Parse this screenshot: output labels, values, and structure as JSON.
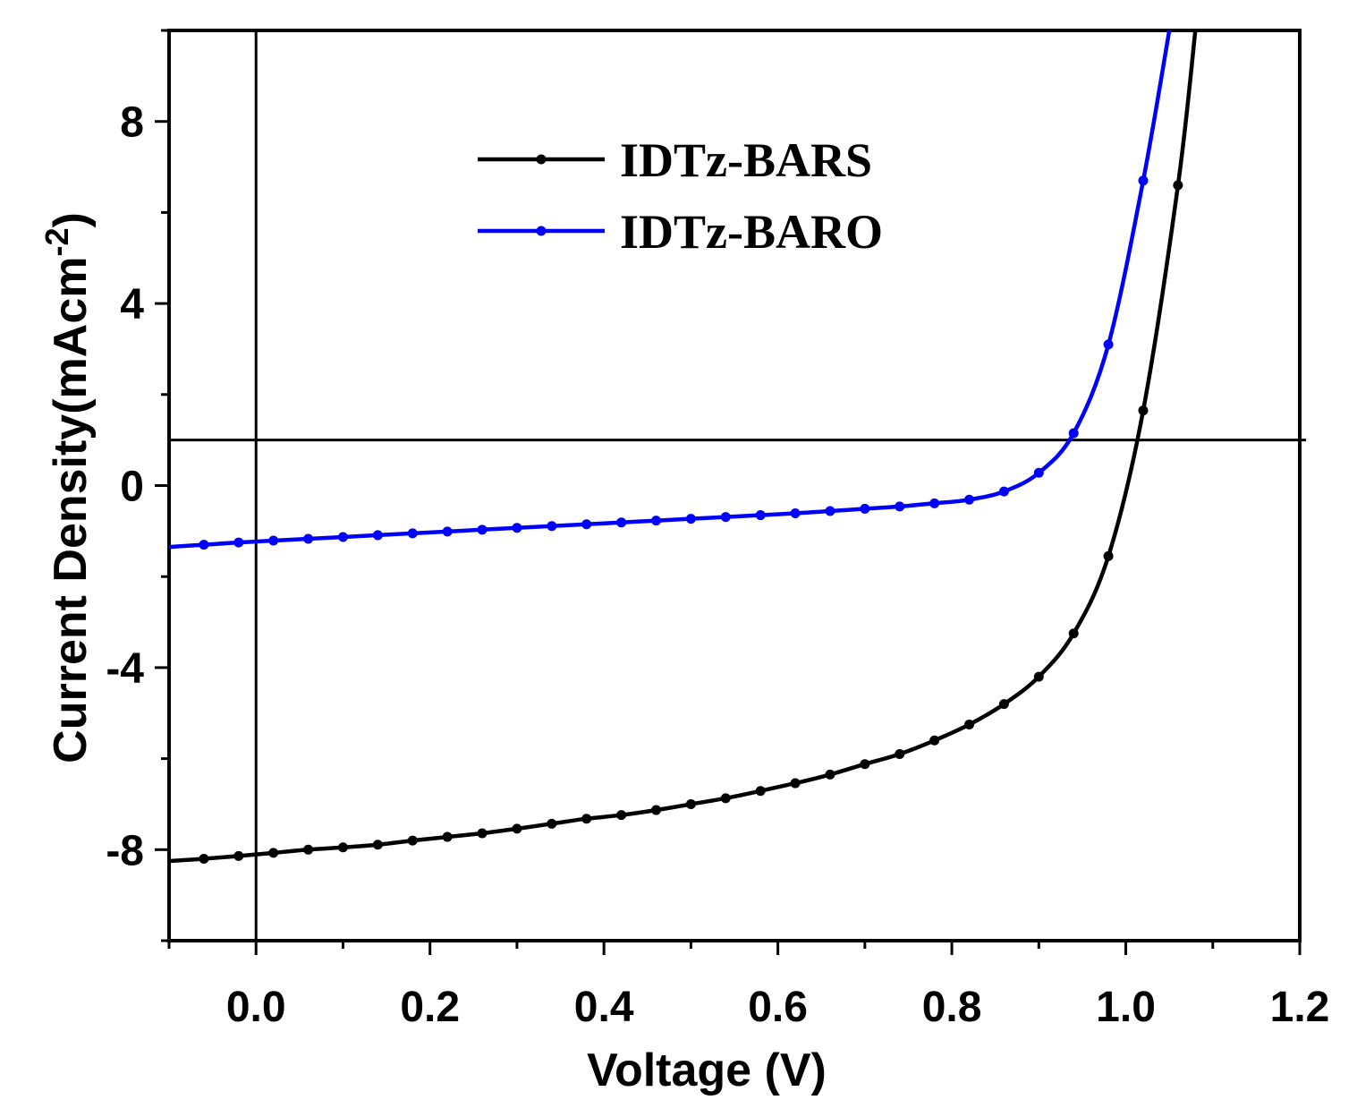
{
  "chart_data": {
    "type": "line",
    "title": "",
    "xlabel": "Voltage (V)",
    "ylabel": "Current Density(mAcm",
    "ylabel_superscript": "-2",
    "ylabel_close": ")",
    "xlim": [
      -0.1,
      1.2
    ],
    "ylim": [
      -10,
      10
    ],
    "xticks": [
      0.0,
      0.2,
      0.4,
      0.6,
      0.8,
      1.0,
      1.2
    ],
    "xtick_labels": [
      "0.0",
      "0.2",
      "0.4",
      "0.6",
      "0.8",
      "1.0",
      "1.2"
    ],
    "yticks": [
      -8,
      -4,
      0,
      4,
      8
    ],
    "ytick_labels": [
      "-8",
      "-4",
      "0",
      "4",
      "8"
    ],
    "reference_lines": {
      "x": 0.0,
      "y": 1.0
    },
    "legend_position": "top-center",
    "series": [
      {
        "name": "IDTz-BARS",
        "color": "#000000",
        "x": [
          -0.1,
          -0.06,
          -0.02,
          0.02,
          0.06,
          0.1,
          0.14,
          0.18,
          0.22,
          0.26,
          0.3,
          0.34,
          0.38,
          0.42,
          0.46,
          0.5,
          0.54,
          0.58,
          0.62,
          0.66,
          0.7,
          0.74,
          0.78,
          0.82,
          0.86,
          0.9,
          0.94,
          0.98,
          1.02,
          1.06,
          1.08
        ],
        "y": [
          -8.25,
          -8.2,
          -8.14,
          -8.07,
          -8.0,
          -7.95,
          -7.89,
          -7.8,
          -7.72,
          -7.64,
          -7.54,
          -7.43,
          -7.32,
          -7.24,
          -7.13,
          -7.0,
          -6.87,
          -6.71,
          -6.54,
          -6.35,
          -6.12,
          -5.9,
          -5.6,
          -5.25,
          -4.8,
          -4.2,
          -3.25,
          -1.55,
          1.65,
          6.6,
          10.0
        ]
      },
      {
        "name": "IDTz-BARO",
        "color": "#0000ff",
        "x": [
          -0.1,
          -0.06,
          -0.02,
          0.02,
          0.06,
          0.1,
          0.14,
          0.18,
          0.22,
          0.26,
          0.3,
          0.34,
          0.38,
          0.42,
          0.46,
          0.5,
          0.54,
          0.58,
          0.62,
          0.66,
          0.7,
          0.74,
          0.78,
          0.82,
          0.86,
          0.9,
          0.94,
          0.98,
          1.02,
          1.05
        ],
        "y": [
          -1.35,
          -1.3,
          -1.25,
          -1.21,
          -1.17,
          -1.13,
          -1.09,
          -1.05,
          -1.01,
          -0.97,
          -0.93,
          -0.89,
          -0.85,
          -0.81,
          -0.77,
          -0.73,
          -0.69,
          -0.65,
          -0.61,
          -0.56,
          -0.51,
          -0.46,
          -0.39,
          -0.31,
          -0.13,
          0.28,
          1.15,
          3.1,
          6.7,
          10.0
        ]
      }
    ]
  }
}
